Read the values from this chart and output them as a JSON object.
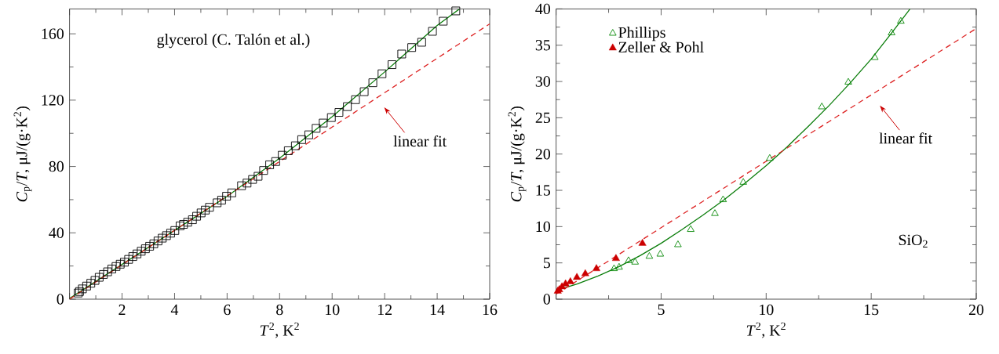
{
  "chart_data": [
    {
      "type": "scatter",
      "xlabel": "*T*$^{2}$, K$^{2}$",
      "ylabel": "*C*$_{p}$/*T*, μJ/(g·K$^{2}$)",
      "xlim": [
        0,
        16
      ],
      "ylim": [
        0,
        175
      ],
      "xticks": [
        {
          "value": 0,
          "label": null
        },
        2,
        4,
        6,
        8,
        10,
        12,
        14,
        16
      ],
      "yticks": [
        0,
        40,
        80,
        120,
        160
      ],
      "annotations": [
        "glycerol (C. Talón et al.)",
        "linear fit"
      ],
      "series": [
        {
          "marker": "square",
          "color": "#000000",
          "x": [
            0.33,
            0.38,
            0.49,
            0.65,
            0.81,
            0.97,
            1.13,
            1.29,
            1.45,
            1.61,
            1.77,
            1.93,
            2.09,
            2.25,
            2.41,
            2.57,
            2.73,
            2.89,
            3.05,
            3.21,
            3.37,
            3.53,
            3.69,
            3.85,
            4.01,
            4.21,
            4.34,
            4.5,
            4.68,
            4.84,
            5.01,
            5.17,
            5.33,
            5.62,
            5.79,
            5.98,
            6.18,
            6.55,
            6.76,
            6.97,
            7.18,
            7.39,
            7.62,
            7.85,
            8.1,
            8.33,
            8.6,
            8.84,
            9.11,
            9.39,
            9.66,
            9.97,
            10.26,
            10.58,
            10.89,
            11.22,
            11.55,
            11.9,
            12.28,
            12.65,
            13.03,
            13.41,
            13.82,
            14.23,
            14.71
          ],
          "values": [
            3.7,
            4.6,
            6.2,
            7.9,
            9.6,
            11.3,
            13.2,
            14.9,
            16.5,
            18.2,
            19.7,
            21.1,
            22.3,
            24.0,
            25.7,
            27.3,
            28.9,
            30.4,
            31.9,
            33.4,
            35.1,
            36.8,
            38.3,
            39.8,
            41.4,
            44.2,
            45.1,
            46.4,
            47.9,
            50.0,
            52.0,
            53.7,
            55.4,
            58.1,
            59.7,
            62.1,
            64.1,
            68.4,
            70.0,
            72.2,
            74.1,
            77.6,
            81.0,
            83.0,
            86.8,
            89.5,
            92.5,
            96.2,
            99.1,
            103.0,
            106.2,
            109.5,
            112.6,
            116.1,
            120.3,
            125.1,
            130.5,
            135.9,
            141.4,
            147.8,
            151.7,
            154.9,
            161.5,
            167.6,
            173.8
          ]
        },
        {
          "type": "line",
          "color": "#0a7d0a",
          "x": [
            0,
            2,
            4,
            6,
            8,
            10,
            12,
            14,
            14.85
          ],
          "values": [
            0.5,
            21,
            41.5,
            62,
            85,
            110,
            137,
            165,
            175
          ]
        },
        {
          "type": "line",
          "line_style": "dashed",
          "color": "#dd2222",
          "x": [
            0,
            16
          ],
          "values": [
            0,
            166
          ]
        }
      ]
    },
    {
      "type": "scatter",
      "xlabel": "*T*$^{2}$, K$^{2}$",
      "ylabel": "*C*$_{p}$/*T*, μJ/(g·K$^{2}$)",
      "xlim": [
        0,
        20
      ],
      "ylim": [
        0,
        40
      ],
      "xticks": [
        {
          "value": 0,
          "label": null
        },
        5,
        10,
        15,
        20
      ],
      "yticks": [
        0,
        5,
        10,
        15,
        20,
        25,
        30,
        35,
        40
      ],
      "legend": "top left",
      "annotations": [
        "SiO$_{2}$",
        "linear fit"
      ],
      "series": [
        {
          "type": "line",
          "color": "#0a7d0a",
          "x": [
            0,
            1,
            2,
            3,
            4,
            5,
            6,
            7,
            8,
            9,
            10,
            11,
            12,
            13,
            14,
            15,
            16,
            16.85
          ],
          "values": [
            1.2,
            2.1,
            3.2,
            4.5,
            6.0,
            7.7,
            9.6,
            11.6,
            13.7,
            16.0,
            18.4,
            21.0,
            23.8,
            26.7,
            29.8,
            33.1,
            36.8,
            40
          ]
        },
        {
          "type": "line",
          "line_style": "dashed",
          "color": "#dd2222",
          "x": [
            0,
            20
          ],
          "values": [
            0.7,
            37.3
          ]
        },
        {
          "name": "Phillips",
          "marker": "triangle",
          "color": "#0a8a0a",
          "x": [
            2.76,
            3.0,
            3.45,
            3.76,
            4.44,
            4.96,
            5.8,
            6.41,
            7.56,
            7.95,
            8.91,
            10.17,
            12.65,
            13.91,
            15.17,
            15.97,
            16.41
          ],
          "values": [
            4.2,
            4.4,
            5.3,
            5.1,
            5.9,
            6.2,
            7.5,
            9.6,
            11.8,
            13.7,
            16.1,
            19.4,
            26.5,
            29.9,
            33.3,
            36.7,
            38.3
          ]
        },
        {
          "name": "Zeller & Pohl",
          "marker": "triangle",
          "color": "#cc0000",
          "x": [
            0.08,
            0.15,
            0.28,
            0.45,
            0.68,
            0.99,
            1.39,
            1.92,
            2.85,
            4.11
          ],
          "values": [
            1.1,
            1.3,
            1.7,
            2.1,
            2.4,
            3.0,
            3.5,
            4.2,
            5.6,
            7.7
          ]
        }
      ]
    }
  ]
}
